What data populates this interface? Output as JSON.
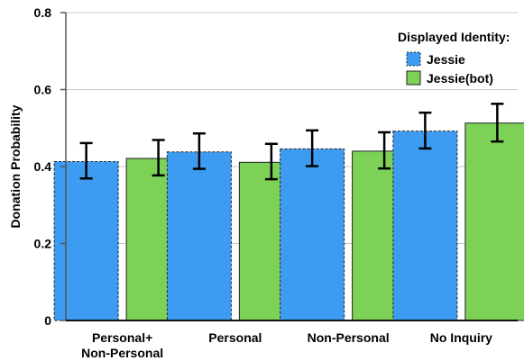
{
  "chart_data": {
    "type": "bar",
    "ylabel": "Donation Probability",
    "xlabel": "",
    "ylim": [
      0,
      0.8
    ],
    "yticks": [
      "0",
      "0.2",
      "0.4",
      "0.6",
      "0.8"
    ],
    "ytick_values": [
      0,
      0.2,
      0.4,
      0.6,
      0.8
    ],
    "grid": true,
    "legend_position": "top-right",
    "categories": [
      [
        "Personal+",
        "Non-Personal"
      ],
      [
        "Personal"
      ],
      [
        "Non-Personal"
      ],
      [
        "No Inquiry"
      ]
    ],
    "legend_title": "Displayed Identity:",
    "series": [
      {
        "name": "Jessie",
        "color": "#3d9cf2",
        "border": "dashed",
        "values": [
          0.413,
          0.438,
          0.446,
          0.492
        ],
        "error_low": [
          0.369,
          0.394,
          0.401,
          0.447
        ],
        "error_high": [
          0.461,
          0.486,
          0.494,
          0.54
        ]
      },
      {
        "name": "Jessie(bot)",
        "color": "#7dd157",
        "border": "solid",
        "values": [
          0.421,
          0.411,
          0.44,
          0.513
        ],
        "error_low": [
          0.377,
          0.367,
          0.395,
          0.465
        ],
        "error_high": [
          0.469,
          0.459,
          0.489,
          0.563
        ]
      }
    ]
  }
}
